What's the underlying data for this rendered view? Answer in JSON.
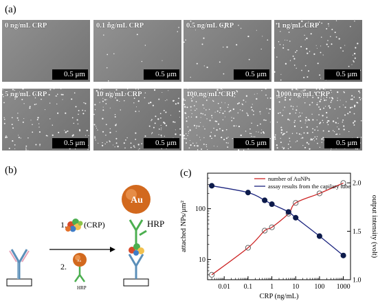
{
  "labels": {
    "a": "(a)",
    "b": "(b)",
    "c": "(c)"
  },
  "sem_panels": [
    {
      "caption": "0 ng/mL CRP",
      "scale": "0.5 μm",
      "density": 0.0
    },
    {
      "caption": "0.1 ng/mL CRP",
      "scale": "0.5 μm",
      "density": 0.05
    },
    {
      "caption": "0.5 ng/mL CRP",
      "scale": "0.5 μm",
      "density": 0.12
    },
    {
      "caption": "1 ng/mL CRP",
      "scale": "0.5 μm",
      "density": 0.35
    },
    {
      "caption": "5 ng/mL CRP",
      "scale": "0.5 μm",
      "density": 0.45
    },
    {
      "caption": "10 ng/mL CRP",
      "scale": "0.5 μm",
      "density": 0.55
    },
    {
      "caption": "100 ng/mL CRP",
      "scale": "0.5 μm",
      "density": 0.8
    },
    {
      "caption": "1000 ng/mL CRP",
      "scale": "0.5 μm",
      "density": 0.95
    }
  ],
  "diagram": {
    "step1": "1.",
    "step1_label": "(CRP)",
    "step2": "2.",
    "au_label": "Au",
    "hrp_label": "HRP",
    "hrp_small": "HRP"
  },
  "chart_data": {
    "type": "scatter",
    "x_label": "CRP (ng/mL)",
    "y_label_left": "attached NPs/μm²",
    "y_label_right": "output intensity (volt)",
    "x_scale": "log",
    "x_range": [
      0.002,
      2000
    ],
    "y_left_scale": "log",
    "y_left_range": [
      4,
      500
    ],
    "y_right_range": [
      1.0,
      2.1
    ],
    "x_ticks": [
      "0.01",
      "0.1",
      "1",
      "10",
      "100",
      "1000"
    ],
    "y_left_ticks": [
      "10",
      "100"
    ],
    "y_right_ticks": [
      "1.0",
      "1.5",
      "2.0"
    ],
    "legend": [
      "number of AuNPs",
      "assay results from the capilary tube"
    ],
    "legend_position": "top-right",
    "series": [
      {
        "name": "number of AuNPs",
        "axis": "left",
        "marker": "open-circle",
        "line_color": "#cc2222",
        "x": [
          0.003,
          0.1,
          0.5,
          1,
          5,
          10,
          100,
          1000
        ],
        "y": [
          5,
          17,
          37,
          43,
          80,
          130,
          200,
          320
        ]
      },
      {
        "name": "assay results from the capilary tube",
        "axis": "right",
        "marker": "filled-circle",
        "line_color": "#1a237e",
        "x": [
          0.003,
          0.1,
          0.5,
          1,
          5,
          10,
          100,
          1000
        ],
        "y": [
          1.97,
          1.9,
          1.82,
          1.78,
          1.7,
          1.64,
          1.45,
          1.25
        ]
      }
    ]
  }
}
